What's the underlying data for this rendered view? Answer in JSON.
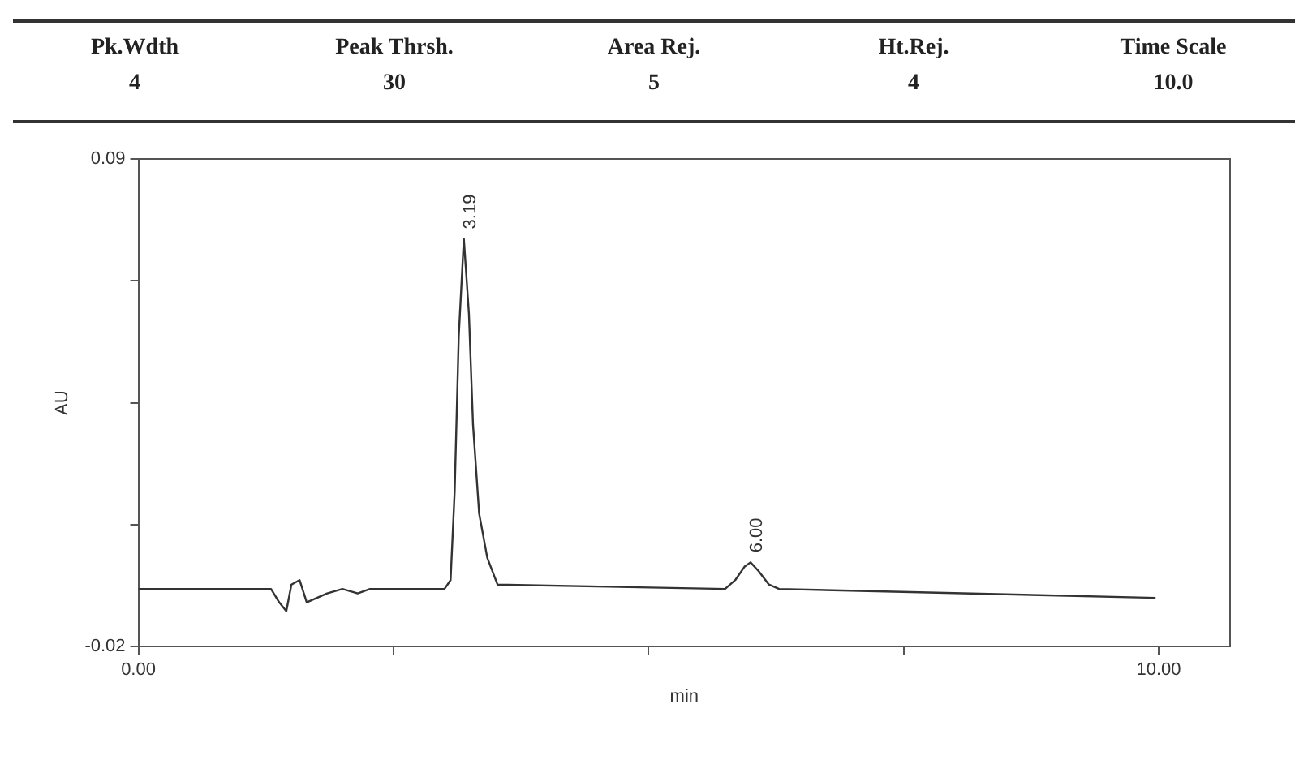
{
  "chart_data": {
    "type": "line",
    "annotations": [
      "Pk.Wdth",
      "4",
      "Peak Thrsh.",
      "30",
      "Area Rej.",
      "5",
      "Ht.Rej.",
      "4",
      "Time Scale",
      "10.0",
      {
        "text": "3.19",
        "x": 3.19,
        "y": 0.072
      },
      {
        "text": "6.00",
        "x": 6.0,
        "y": -0.001
      }
    ],
    "xlabel": "min",
    "ylabel": "AU",
    "x": [
      0.0,
      1.3,
      1.38,
      1.45,
      1.5,
      1.58,
      1.65,
      1.75,
      1.85,
      2.0,
      2.15,
      2.27,
      3.0,
      3.06,
      3.1,
      3.14,
      3.19,
      3.24,
      3.28,
      3.34,
      3.42,
      3.52,
      5.75,
      5.85,
      5.94,
      6.0,
      6.08,
      6.18,
      6.28,
      9.97
    ],
    "series": [
      {
        "color": "#333333",
        "values": [
          -0.007,
          -0.007,
          -0.01,
          -0.012,
          -0.006,
          -0.005,
          -0.01,
          -0.009,
          -0.008,
          -0.007,
          -0.008,
          -0.007,
          -0.007,
          -0.005,
          0.015,
          0.05,
          0.072,
          0.055,
          0.03,
          0.01,
          0.0,
          -0.006,
          -0.007,
          -0.005,
          -0.002,
          -0.001,
          -0.003,
          -0.006,
          -0.007,
          -0.009
        ]
      }
    ],
    "xlim": [
      0,
      10.7
    ],
    "ylim": [
      -0.02,
      0.09
    ],
    "xticks": [
      {
        "value": 0,
        "label": "0.00"
      },
      {
        "value": 2.5,
        "label": null
      },
      {
        "value": 5,
        "label": null
      },
      {
        "value": 7.5,
        "label": null
      },
      {
        "value": 10,
        "label": "10.00"
      }
    ],
    "yticks": [
      {
        "value": -0.02,
        "label": "-0.02"
      },
      {
        "value": 0.0075,
        "label": null
      },
      {
        "value": 0.035,
        "label": null
      },
      {
        "value": 0.0625,
        "label": null
      },
      {
        "value": 0.09,
        "label": "0.09"
      }
    ],
    "legend": false,
    "marker": "none",
    "line_style": "solid"
  }
}
